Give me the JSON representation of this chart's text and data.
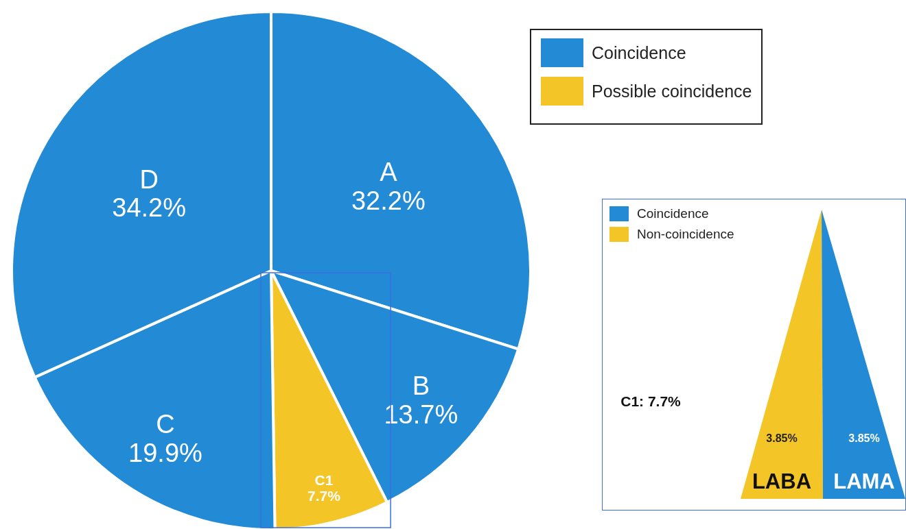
{
  "chart_data": [
    {
      "type": "pie",
      "categories": [
        "A",
        "B",
        "C1",
        "C",
        "D"
      ],
      "values": [
        32.2,
        13.7,
        7.7,
        19.9,
        34.2
      ],
      "colors": [
        "#238bd6",
        "#238bd6",
        "#f4c527",
        "#238bd6",
        "#238bd6"
      ],
      "value_labels": [
        "32.2%",
        "13.7%",
        "7.7%",
        "19.9%",
        "34.2%"
      ],
      "annotations": [
        "Coincidence",
        "Possible coincidence"
      ]
    },
    {
      "type": "other",
      "title": "C1: 7.7%",
      "categories": [
        "LABA",
        "LAMA"
      ],
      "legend": "top left",
      "series": [
        {
          "name": "Coincidence",
          "color": "#238bd6",
          "values": [
            null,
            3.85
          ],
          "value_labels": [
            null,
            "3.85%"
          ]
        },
        {
          "name": "Non-coincidence",
          "color": "#f4c527",
          "values": [
            3.85,
            null
          ],
          "value_labels": [
            "3.85%",
            null
          ]
        }
      ]
    }
  ]
}
